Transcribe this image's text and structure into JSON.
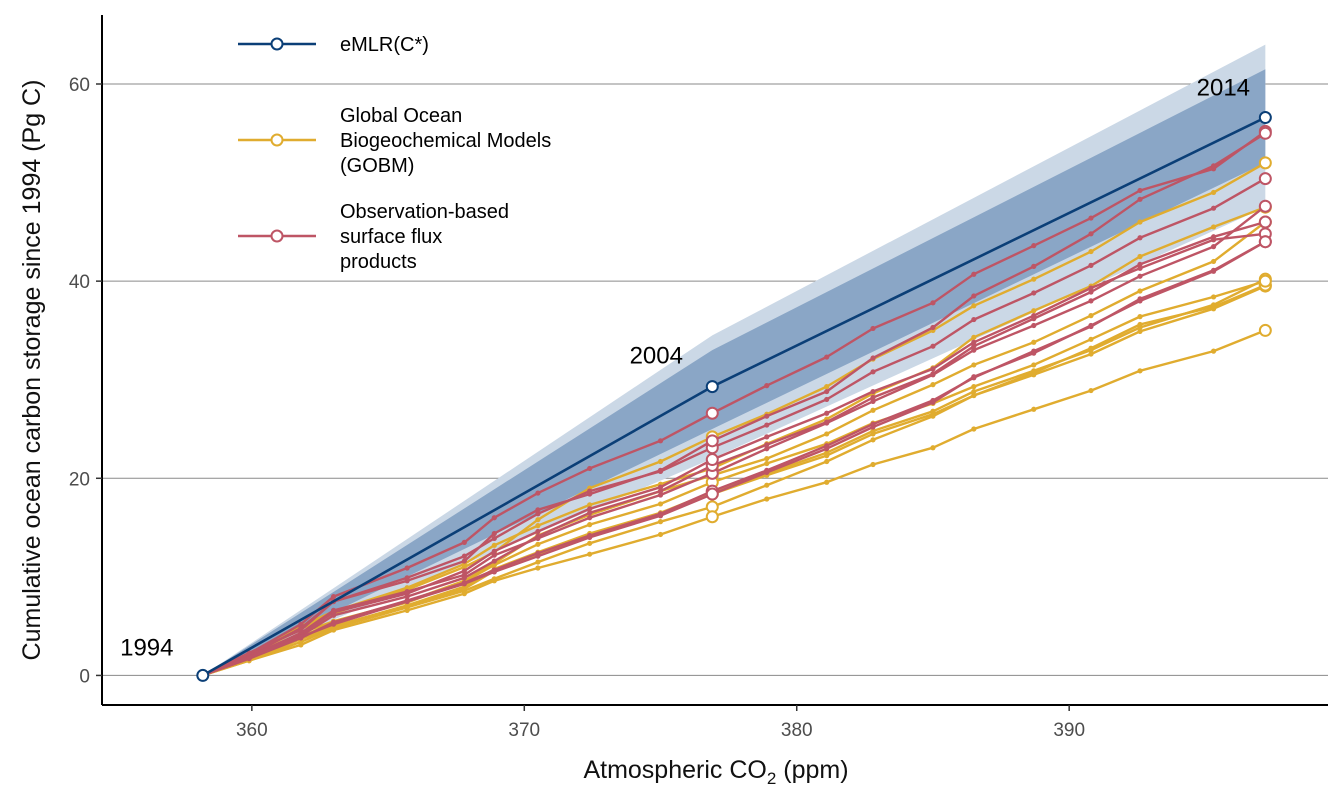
{
  "chart_data": {
    "type": "line",
    "xlabel_main": "Atmospheric CO",
    "xlabel_sub": "2",
    "xlabel_end": " (ppm)",
    "ylabel": "Cumulative ocean carbon storage since 1994 (Pg C)",
    "xlim": [
      354.5,
      399.5
    ],
    "ylim": [
      -3,
      67
    ],
    "x_ticks": [
      360,
      370,
      380,
      390
    ],
    "y_ticks": [
      0,
      20,
      40,
      60
    ],
    "grid": "horizontal-major",
    "legend_position": "top-left",
    "colors": {
      "emlr": "#0b3f77",
      "gobm": "#e0ac2f",
      "obs": "#be5565",
      "band_outer": "#cbd8e6",
      "band_inner": "#8aa6c6"
    },
    "co2_x": [
      358.2,
      359.9,
      361.8,
      363.0,
      365.7,
      367.8,
      368.9,
      370.5,
      372.4,
      375.0,
      376.9,
      378.9,
      381.1,
      382.8,
      385.0,
      386.5,
      388.7,
      390.8,
      392.6,
      395.3,
      397.2
    ],
    "year_labels": [
      {
        "label": "1994",
        "x": 358.2,
        "y": 0
      },
      {
        "label": "2004",
        "x": 376.9,
        "y": 29.3
      },
      {
        "label": "2014",
        "x": 397.2,
        "y": 56.6
      }
    ],
    "emlr": {
      "name": "eMLR(C*)",
      "x": [
        358.2,
        376.9,
        397.2
      ],
      "y": [
        0,
        29.3,
        56.6
      ]
    },
    "bands": {
      "outer": {
        "x": [
          358.2,
          376.9,
          397.2
        ],
        "lower": [
          0,
          22.0,
          47.5
        ],
        "upper": [
          0,
          34.5,
          64.0
        ]
      },
      "inner": {
        "x": [
          358.2,
          376.9,
          397.2
        ],
        "lower": [
          0,
          25.0,
          52.0
        ],
        "upper": [
          0,
          33.0,
          61.5
        ]
      }
    },
    "legend": [
      {
        "key": "emlr",
        "label_lines": [
          "eMLR(C*)"
        ]
      },
      {
        "key": "gobm",
        "label_lines": [
          "Global Ocean",
          "Biogeochemical Models",
          "(GOBM)"
        ]
      },
      {
        "key": "obs",
        "label_lines": [
          "Observation-based",
          "surface flux",
          "products"
        ]
      }
    ],
    "gobm_series": [
      [
        0,
        2.1,
        5.0,
        6.5,
        8.9,
        11.3,
        13.2,
        15.2,
        17.3,
        19.4,
        21.0,
        23.5,
        26.0,
        28.6,
        31.2,
        34.3,
        37.0,
        39.5,
        42.5,
        45.5,
        47.5
      ],
      [
        0,
        2.0,
        4.7,
        6.3,
        8.7,
        11.0,
        12.5,
        15.8,
        19.0,
        21.7,
        24.2,
        26.5,
        29.3,
        32.1,
        35.0,
        37.5,
        40.2,
        43.0,
        46.0,
        49.0,
        52.0
      ],
      [
        0,
        1.8,
        4.3,
        5.5,
        7.5,
        9.6,
        11.4,
        14.2,
        16.3,
        18.7,
        20.3,
        22.0,
        24.5,
        26.9,
        29.5,
        31.5,
        33.8,
        36.5,
        39.0,
        42.0,
        46.0
      ],
      [
        0,
        1.6,
        3.7,
        4.9,
        6.9,
        8.8,
        10.6,
        12.3,
        14.2,
        16.3,
        18.4,
        20.3,
        22.3,
        24.5,
        26.5,
        28.4,
        30.5,
        32.6,
        34.9,
        37.2,
        39.5
      ],
      [
        0,
        1.7,
        3.8,
        5.0,
        7.1,
        9.0,
        10.8,
        12.5,
        14.4,
        16.5,
        18.6,
        20.5,
        22.6,
        24.8,
        26.8,
        28.8,
        30.9,
        33.0,
        35.3,
        37.6,
        40.2
      ],
      [
        0,
        1.5,
        3.4,
        4.8,
        6.9,
        8.6,
        9.8,
        11.5,
        13.4,
        15.6,
        17.1,
        19.3,
        21.7,
        23.9,
        26.3,
        28.4,
        30.7,
        33.2,
        35.6,
        37.4,
        39.6
      ],
      [
        0,
        1.8,
        3.9,
        5.4,
        7.4,
        9.5,
        11.2,
        13.3,
        15.3,
        17.4,
        19.6,
        21.5,
        23.5,
        25.6,
        27.6,
        29.3,
        31.5,
        34.1,
        36.4,
        38.4,
        40.0
      ],
      [
        0,
        1.5,
        3.1,
        4.6,
        6.6,
        8.3,
        9.6,
        10.9,
        12.3,
        14.3,
        16.1,
        17.9,
        19.6,
        21.4,
        23.1,
        25.0,
        27.0,
        28.9,
        30.9,
        32.9,
        35.0
      ]
    ],
    "obs_series": [
      [
        0,
        2.2,
        5.2,
        8.0,
        10.9,
        13.5,
        16.0,
        18.5,
        21.0,
        23.8,
        26.6,
        29.4,
        32.3,
        35.2,
        37.8,
        40.7,
        43.6,
        46.4,
        49.2,
        51.4,
        55.2
      ],
      [
        0,
        2.0,
        4.8,
        7.5,
        9.9,
        12.1,
        13.9,
        16.4,
        18.7,
        20.7,
        23.1,
        25.4,
        28.0,
        30.8,
        33.4,
        36.1,
        38.8,
        41.6,
        44.4,
        47.4,
        50.4
      ],
      [
        0,
        1.9,
        4.3,
        6.6,
        8.5,
        10.2,
        12.2,
        13.9,
        16.0,
        18.3,
        20.5,
        23.0,
        25.6,
        27.8,
        30.5,
        33.0,
        35.5,
        38.0,
        40.5,
        43.5,
        47.6
      ],
      [
        0,
        1.8,
        4.0,
        6.1,
        8.0,
        9.9,
        11.6,
        14.1,
        16.5,
        18.7,
        21.3,
        23.4,
        25.7,
        28.2,
        30.6,
        33.4,
        36.2,
        38.9,
        41.7,
        44.5,
        46.0
      ],
      [
        0,
        1.9,
        4.2,
        6.4,
        8.3,
        10.6,
        12.6,
        14.6,
        16.9,
        19.1,
        21.9,
        24.2,
        26.6,
        28.8,
        31.1,
        33.8,
        36.5,
        39.3,
        41.3,
        44.2,
        44.8
      ],
      [
        0,
        1.7,
        3.8,
        5.4,
        7.6,
        9.4,
        10.7,
        12.4,
        14.2,
        16.4,
        18.7,
        20.8,
        23.3,
        25.5,
        27.9,
        30.2,
        32.9,
        35.4,
        38.2,
        41.1,
        44.0
      ],
      [
        0,
        1.8,
        3.9,
        5.2,
        7.5,
        9.3,
        10.5,
        12.1,
        14.0,
        16.2,
        18.4,
        20.6,
        23.0,
        25.2,
        27.7,
        30.3,
        32.7,
        35.5,
        38.0,
        41.0,
        44.0
      ],
      [
        0,
        2.3,
        4.6,
        7.5,
        9.6,
        11.6,
        14.4,
        16.8,
        18.4,
        20.8,
        23.8,
        26.3,
        28.8,
        32.2,
        35.3,
        38.5,
        41.5,
        44.8,
        48.3,
        51.7,
        55.0
      ]
    ]
  }
}
